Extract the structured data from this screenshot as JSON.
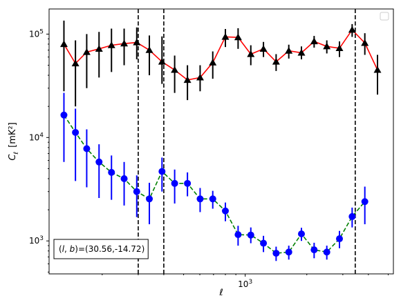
{
  "chart_data": {
    "type": "scatter",
    "title": "",
    "xlabel": "ℓ",
    "ylabel_main": "C",
    "ylabel_sub": "ℓ",
    "ylabel_unit": "[mK²]",
    "x_scale": "log",
    "y_scale": "log",
    "xlim": [
      110,
      5300
    ],
    "ylim": [
      480,
      175000
    ],
    "x_tick_labels": [
      {
        "value": 1000,
        "base": "10",
        "exp": "3"
      }
    ],
    "y_tick_labels": [
      {
        "value": 1000,
        "base": "10",
        "exp": "3"
      },
      {
        "value": 10000,
        "base": "10",
        "exp": "4"
      },
      {
        "value": 100000,
        "base": "10",
        "exp": "5"
      }
    ],
    "grid": false,
    "legend": {
      "position": "top-right",
      "entries": []
    },
    "vertical_lines": [
      300,
      400,
      3450
    ],
    "annotation": "(l, b)=(30.56,-14.72)",
    "series": [
      {
        "color": "#ff0000",
        "marker": "triangle",
        "marker_color": "#000000",
        "errorbar_color": "#000000",
        "line_style": "solid",
        "points": [
          {
            "x": 130,
            "y": 80000,
            "lo": 28000,
            "hi": 135000
          },
          {
            "x": 148,
            "y": 52000,
            "lo": 20000,
            "hi": 87000
          },
          {
            "x": 168,
            "y": 67000,
            "lo": 30000,
            "hi": 100000
          },
          {
            "x": 193,
            "y": 72000,
            "lo": 38000,
            "hi": 105000
          },
          {
            "x": 222,
            "y": 78000,
            "lo": 43000,
            "hi": 113000
          },
          {
            "x": 256,
            "y": 81000,
            "lo": 50000,
            "hi": 113000
          },
          {
            "x": 295,
            "y": 83000,
            "lo": 57000,
            "hi": 116000
          },
          {
            "x": 340,
            "y": 70000,
            "lo": 40000,
            "hi": 97000
          },
          {
            "x": 392,
            "y": 54000,
            "lo": 33000,
            "hi": 95000
          },
          {
            "x": 452,
            "y": 45000,
            "lo": 27000,
            "hi": 62000
          },
          {
            "x": 522,
            "y": 36000,
            "lo": 23000,
            "hi": 50000
          },
          {
            "x": 602,
            "y": 38000,
            "lo": 28000,
            "hi": 50000
          },
          {
            "x": 694,
            "y": 53000,
            "lo": 37000,
            "hi": 68000
          },
          {
            "x": 800,
            "y": 94000,
            "lo": 75000,
            "hi": 112000
          },
          {
            "x": 923,
            "y": 93000,
            "lo": 72000,
            "hi": 114000
          },
          {
            "x": 1065,
            "y": 64000,
            "lo": 50000,
            "hi": 78000
          },
          {
            "x": 1228,
            "y": 72000,
            "lo": 60000,
            "hi": 84000
          },
          {
            "x": 1416,
            "y": 54000,
            "lo": 44000,
            "hi": 64000
          },
          {
            "x": 1633,
            "y": 69000,
            "lo": 58000,
            "hi": 79000
          },
          {
            "x": 1883,
            "y": 66000,
            "lo": 57000,
            "hi": 76000
          },
          {
            "x": 2172,
            "y": 85000,
            "lo": 74000,
            "hi": 96000
          },
          {
            "x": 2505,
            "y": 76000,
            "lo": 65000,
            "hi": 87000
          },
          {
            "x": 2889,
            "y": 73000,
            "lo": 60000,
            "hi": 85000
          },
          {
            "x": 3332,
            "y": 110000,
            "lo": 94000,
            "hi": 125000
          },
          {
            "x": 3843,
            "y": 82000,
            "lo": 63000,
            "hi": 102000
          },
          {
            "x": 4432,
            "y": 45000,
            "lo": 26000,
            "hi": 63000
          }
        ]
      },
      {
        "color": "#008000",
        "marker": "circle",
        "marker_color": "#0000ff",
        "errorbar_color": "#0000ff",
        "line_style": "dashed",
        "points": [
          {
            "x": 130,
            "y": 16500,
            "lo": 5800,
            "hi": 27000
          },
          {
            "x": 148,
            "y": 11200,
            "lo": 3800,
            "hi": 19000
          },
          {
            "x": 168,
            "y": 7800,
            "lo": 3300,
            "hi": 12000
          },
          {
            "x": 193,
            "y": 5800,
            "lo": 2600,
            "hi": 8600
          },
          {
            "x": 222,
            "y": 4600,
            "lo": 2500,
            "hi": 6700
          },
          {
            "x": 256,
            "y": 4000,
            "lo": 2200,
            "hi": 5800
          },
          {
            "x": 295,
            "y": 3000,
            "lo": 1700,
            "hi": 4300
          },
          {
            "x": 340,
            "y": 2550,
            "lo": 1450,
            "hi": 3650
          },
          {
            "x": 392,
            "y": 4700,
            "lo": 3000,
            "hi": 6400
          },
          {
            "x": 452,
            "y": 3600,
            "lo": 2300,
            "hi": 4900
          },
          {
            "x": 522,
            "y": 3600,
            "lo": 2700,
            "hi": 4600
          },
          {
            "x": 602,
            "y": 2550,
            "lo": 1900,
            "hi": 3250
          },
          {
            "x": 694,
            "y": 2550,
            "lo": 2050,
            "hi": 3050
          },
          {
            "x": 800,
            "y": 1950,
            "lo": 1550,
            "hi": 2350
          },
          {
            "x": 923,
            "y": 1150,
            "lo": 900,
            "hi": 1400
          },
          {
            "x": 1065,
            "y": 1140,
            "lo": 950,
            "hi": 1350
          },
          {
            "x": 1228,
            "y": 950,
            "lo": 780,
            "hi": 1120
          },
          {
            "x": 1416,
            "y": 760,
            "lo": 640,
            "hi": 880
          },
          {
            "x": 1633,
            "y": 780,
            "lo": 660,
            "hi": 900
          },
          {
            "x": 1883,
            "y": 1170,
            "lo": 1000,
            "hi": 1340
          },
          {
            "x": 2172,
            "y": 820,
            "lo": 680,
            "hi": 960
          },
          {
            "x": 2505,
            "y": 780,
            "lo": 660,
            "hi": 900
          },
          {
            "x": 2889,
            "y": 1050,
            "lo": 850,
            "hi": 1250
          },
          {
            "x": 3332,
            "y": 1720,
            "lo": 1350,
            "hi": 2100
          },
          {
            "x": 3843,
            "y": 2400,
            "lo": 1450,
            "hi": 3350
          }
        ]
      }
    ]
  }
}
